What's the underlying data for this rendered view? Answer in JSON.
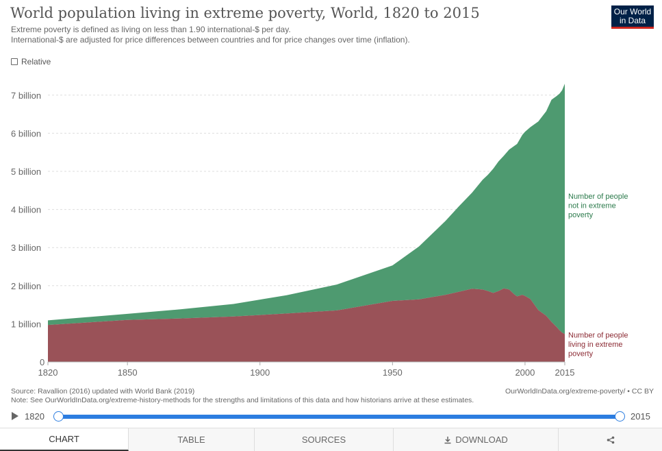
{
  "header": {
    "title": "World population living in extreme poverty, World, 1820 to 2015",
    "subtitle_line1": "Extreme poverty is defined as living on less than 1.90 international-$ per day.",
    "subtitle_line2": "International-$ are adjusted for price differences between countries and for price changes over time (inflation).",
    "logo_line1": "Our World",
    "logo_line2": "in Data"
  },
  "controls": {
    "relative_label": "Relative"
  },
  "chart_data": {
    "type": "area",
    "stacked": true,
    "title": "World population living in extreme poverty, World, 1820 to 2015",
    "xlim": [
      1820,
      2015
    ],
    "ylim": [
      0,
      7.4
    ],
    "x_ticks": [
      "1820",
      "1850",
      "1900",
      "1950",
      "2000",
      "2015"
    ],
    "y_ticks": [
      "0",
      "1 billion",
      "2 billion",
      "3 billion",
      "4 billion",
      "5 billion",
      "6 billion",
      "7 billion"
    ],
    "unit": "billion",
    "grid": "horizontal",
    "legend": "inline-right",
    "series": [
      {
        "name": "Number of people living in extreme poverty",
        "color": "#9a5258",
        "label_color": "#8b2a33",
        "x": [
          1820,
          1850,
          1870,
          1890,
          1910,
          1929,
          1950,
          1960,
          1970,
          1975,
          1980,
          1984,
          1986,
          1988,
          1990,
          1992,
          1994,
          1996,
          1997,
          1999,
          2000,
          2002,
          2005,
          2008,
          2010,
          2012,
          2013,
          2014,
          2015
        ],
        "values": [
          0.97,
          1.1,
          1.14,
          1.19,
          1.27,
          1.35,
          1.6,
          1.64,
          1.76,
          1.84,
          1.92,
          1.9,
          1.86,
          1.81,
          1.86,
          1.93,
          1.9,
          1.77,
          1.72,
          1.76,
          1.73,
          1.65,
          1.36,
          1.21,
          1.05,
          0.91,
          0.83,
          0.77,
          0.73
        ]
      },
      {
        "name": "Number of people not in extreme poverty",
        "color": "#4e9a70",
        "label_color": "#2b7a4b",
        "x": [
          1820,
          1850,
          1870,
          1890,
          1910,
          1929,
          1950,
          1960,
          1970,
          1975,
          1980,
          1984,
          1986,
          1988,
          1990,
          1992,
          1994,
          1996,
          1997,
          1999,
          2000,
          2002,
          2005,
          2008,
          2010,
          2012,
          2013,
          2014,
          2015
        ],
        "values": [
          0.12,
          0.16,
          0.24,
          0.33,
          0.48,
          0.68,
          0.93,
          1.39,
          1.94,
          2.24,
          2.52,
          2.88,
          3.05,
          3.26,
          3.4,
          3.48,
          3.67,
          3.9,
          4.0,
          4.2,
          4.31,
          4.51,
          4.95,
          5.37,
          5.83,
          6.07,
          6.21,
          6.36,
          6.57
        ]
      }
    ],
    "series_labels": [
      [
        "Number of people",
        "living in extreme",
        "poverty"
      ],
      [
        "Number of people",
        "not in extreme",
        "poverty"
      ]
    ]
  },
  "footer": {
    "source": "Source: Ravallion (2016) updated with World Bank (2019)",
    "note": "Note: See OurWorldInData.org/extreme-history-methods for the strengths and limitations of this data and how historians arrive at these estimates.",
    "link": "OurWorldInData.org/extreme-poverty/ • CC BY"
  },
  "timeline": {
    "start_label": "1820",
    "end_label": "2015"
  },
  "tabs": [
    {
      "label": "CHART",
      "icon": ""
    },
    {
      "label": "TABLE",
      "icon": ""
    },
    {
      "label": "SOURCES",
      "icon": ""
    },
    {
      "label": "DOWNLOAD",
      "icon": "download-icon"
    },
    {
      "label": "",
      "icon": "share-icon"
    }
  ]
}
